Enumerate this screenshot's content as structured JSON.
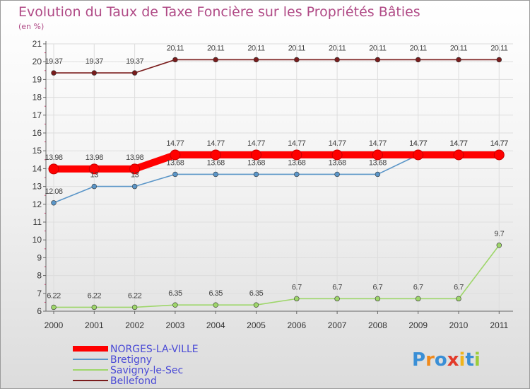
{
  "chart_data": {
    "type": "line",
    "title": "Evolution du Taux de Taxe Foncière sur les Propriétés Bâties",
    "subtitle": "(en %)",
    "x": [
      "2000",
      "2001",
      "2002",
      "2003",
      "2004",
      "2005",
      "2006",
      "2007",
      "2008",
      "2009",
      "2010",
      "2011"
    ],
    "ylim": [
      6,
      21
    ],
    "yticks": [
      "6",
      "7",
      "8",
      "9",
      "10",
      "11",
      "12",
      "13",
      "14",
      "15",
      "16",
      "17",
      "18",
      "19",
      "20",
      "21"
    ],
    "grid": true,
    "legend_position": "bottom-left",
    "series": [
      {
        "name": "Belléfond",
        "legend_label": "Bellefond",
        "color": "#7a1c1c",
        "values": [
          19.37,
          19.37,
          19.37,
          20.11,
          20.11,
          20.11,
          20.11,
          20.11,
          20.11,
          20.11,
          20.11,
          20.11
        ],
        "labels": [
          "19.37",
          "19.37",
          "19.37",
          "20.11",
          "20.11",
          "20.11",
          "20.11",
          "20.11",
          "20.11",
          "20.11",
          "20.11",
          "20.11"
        ]
      },
      {
        "name": "Bretigny",
        "legend_label": "Bretigny",
        "color": "#5b96c8",
        "values": [
          12.08,
          13,
          13,
          13.68,
          13.68,
          13.68,
          13.68,
          13.68,
          13.68,
          14.77,
          14.77,
          14.77
        ],
        "labels": [
          "12.08",
          "13",
          "13",
          "13.68",
          "13.68",
          "13.68",
          "13.68",
          "13.68",
          "13.68",
          "14.77",
          "14.77",
          "14.77"
        ]
      },
      {
        "name": "Savigny-le-Sec",
        "legend_label": "Savigny-le-Sec",
        "color": "#9ed66a",
        "values": [
          6.22,
          6.22,
          6.22,
          6.35,
          6.35,
          6.35,
          6.7,
          6.7,
          6.7,
          6.7,
          6.7,
          9.7
        ],
        "labels": [
          "6.22",
          "6.22",
          "6.22",
          "6.35",
          "6.35",
          "6.35",
          "6.7",
          "6.7",
          "6.7",
          "6.7",
          "6.7",
          "9.7"
        ]
      },
      {
        "name": "NORGES-LA-VILLE",
        "legend_label": "NORGES-LA-VILLE",
        "color": "#ff0000",
        "values": [
          13.98,
          13.98,
          13.98,
          14.77,
          14.77,
          14.77,
          14.77,
          14.77,
          14.77,
          14.77,
          14.77,
          14.77
        ],
        "labels": [
          "13.98",
          "13.98",
          "13.98",
          "14.77",
          "14.77",
          "14.77",
          "14.77",
          "14.77",
          "14.77",
          "14.77",
          "14.77",
          "14.77"
        ]
      }
    ],
    "legend_order": [
      "NORGES-LA-VILLE",
      "Bretigny",
      "Savigny-le-Sec",
      "Belléfond"
    ]
  },
  "legend": [
    "NORGES-LA-VILLE",
    "Bretigny",
    "Savigny-le-Sec",
    "Bellefond"
  ],
  "logo_text": "Proxiti",
  "colors": {
    "title": "#b04a86",
    "legend_text": "#4a4ad6",
    "axis": "#666666",
    "grid": "#dddddd"
  }
}
